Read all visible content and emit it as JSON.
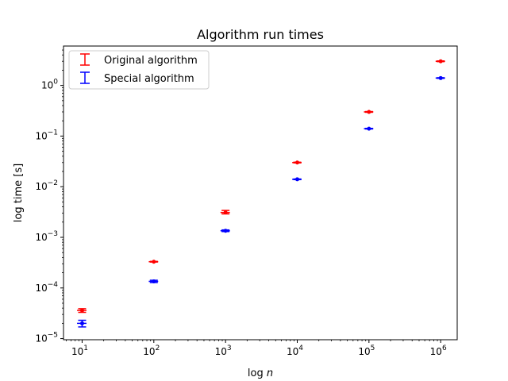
{
  "chart_data": {
    "type": "scatter",
    "title": "Algorithm run times",
    "xlabel_prefix": "log ",
    "xlabel_var": "n",
    "ylabel": "log time [s]",
    "xscale": "log",
    "yscale": "log",
    "xlim": [
      5.5,
      1700000
    ],
    "ylim": [
      9.5e-06,
      6.0
    ],
    "x_ticks": [
      10,
      100,
      1000,
      10000,
      100000,
      1000000
    ],
    "x_tick_labels": [
      "10",
      "10",
      "10",
      "10",
      "10",
      "10"
    ],
    "x_tick_exponents": [
      "1",
      "2",
      "3",
      "4",
      "5",
      "6"
    ],
    "y_ticks": [
      1e-05,
      0.0001,
      0.001,
      0.01,
      0.1,
      1
    ],
    "y_tick_labels": [
      "10",
      "10",
      "10",
      "10",
      "10",
      "10"
    ],
    "y_tick_exponents": [
      "−5",
      "−4",
      "−3",
      "−2",
      "−1",
      "0"
    ],
    "grid": false,
    "legend_position": "top-left",
    "series": [
      {
        "name": "Original algorithm",
        "color": "#ff0000",
        "x": [
          10,
          100,
          1000,
          10000,
          100000,
          1000000
        ],
        "y": [
          3.6e-05,
          0.00033,
          0.0031,
          0.03,
          0.3,
          3.0
        ],
        "yerr_low": [
          3.3e-05,
          0.000325,
          0.0029,
          0.0295,
          0.295,
          2.95
        ],
        "yerr_high": [
          3.9e-05,
          0.000335,
          0.0034,
          0.0305,
          0.305,
          3.05
        ],
        "xerr_low": [
          8.5,
          85,
          850,
          8500,
          85000,
          850000
        ],
        "xerr_high": [
          11.5,
          115,
          1150,
          11500,
          115000,
          1150000
        ]
      },
      {
        "name": "Special algorithm",
        "color": "#0000ff",
        "x": [
          10,
          100,
          1000,
          10000,
          100000,
          1000000
        ],
        "y": [
          2e-05,
          0.000135,
          0.00135,
          0.014,
          0.14,
          1.4
        ],
        "yerr_low": [
          1.7e-05,
          0.000128,
          0.0013,
          0.0138,
          0.138,
          1.38
        ],
        "yerr_high": [
          2.3e-05,
          0.000142,
          0.0014,
          0.0142,
          0.142,
          1.42
        ],
        "xerr_low": [
          8.5,
          85,
          850,
          8500,
          85000,
          850000
        ],
        "xerr_high": [
          11.5,
          115,
          1150,
          11500,
          115000,
          1150000
        ]
      }
    ]
  }
}
